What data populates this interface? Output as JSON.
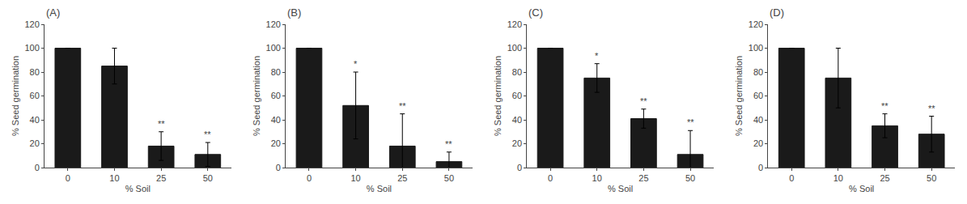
{
  "chart_data": [
    {
      "type": "bar",
      "title": "(A)",
      "categories": [
        "0",
        "10",
        "25",
        "50"
      ],
      "values": [
        100,
        85,
        18,
        11
      ],
      "errors": [
        0,
        15,
        12,
        10
      ],
      "annotations": [
        null,
        null,
        "**",
        "**"
      ],
      "xlabel": "% Soil",
      "ylabel": "% Seed germination",
      "ylim": [
        0,
        120
      ],
      "yticks": [
        0,
        20,
        40,
        60,
        80,
        100,
        120
      ],
      "color": "#1a1a1a",
      "grid": false
    },
    {
      "type": "bar",
      "title": "(B)",
      "categories": [
        "0",
        "10",
        "25",
        "50"
      ],
      "values": [
        100,
        52,
        18,
        5
      ],
      "errors": [
        0,
        28,
        27,
        8
      ],
      "annotations": [
        null,
        "*",
        "**",
        "**"
      ],
      "xlabel": "% Soil",
      "ylabel": "% Seed germination",
      "ylim": [
        0,
        120
      ],
      "yticks": [
        0,
        20,
        40,
        60,
        80,
        100,
        120
      ],
      "color": "#1a1a1a",
      "grid": false
    },
    {
      "type": "bar",
      "title": "(C)",
      "categories": [
        "0",
        "10",
        "25",
        "50"
      ],
      "values": [
        100,
        75,
        41,
        11
      ],
      "errors": [
        0,
        12,
        8,
        20
      ],
      "annotations": [
        null,
        "*",
        "**",
        "**"
      ],
      "xlabel": "% Soil",
      "ylabel": "% Seed germination",
      "ylim": [
        0,
        120
      ],
      "yticks": [
        0,
        20,
        40,
        60,
        80,
        100,
        120
      ],
      "color": "#1a1a1a",
      "grid": false
    },
    {
      "type": "bar",
      "title": "(D)",
      "categories": [
        "0",
        "10",
        "25",
        "50"
      ],
      "values": [
        100,
        75,
        35,
        28
      ],
      "errors": [
        0,
        25,
        10,
        15
      ],
      "annotations": [
        null,
        null,
        "**",
        "**"
      ],
      "xlabel": "% Soil",
      "ylabel": "% Seed germination",
      "ylim": [
        0,
        120
      ],
      "yticks": [
        0,
        20,
        40,
        60,
        80,
        100,
        120
      ],
      "color": "#1a1a1a",
      "grid": false
    }
  ]
}
